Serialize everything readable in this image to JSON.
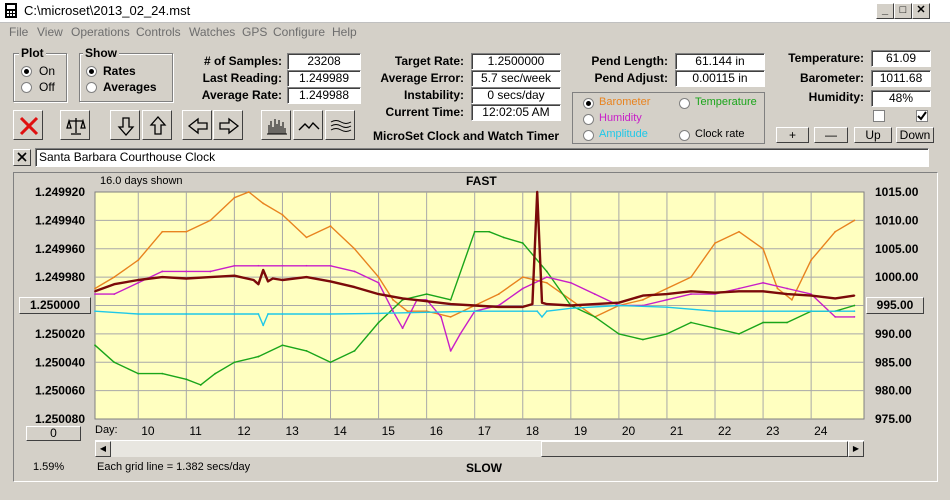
{
  "window": {
    "title": "C:\\microset\\2013_02_24.mst"
  },
  "menu": [
    "File",
    "View",
    "Operations",
    "Controls",
    "Watches",
    "GPS",
    "Configure",
    "Help"
  ],
  "plot_group": {
    "title": "Plot",
    "options": [
      "On",
      "Off"
    ],
    "selected": "On"
  },
  "show_group": {
    "title": "Show",
    "options": [
      "Rates",
      "Averages"
    ],
    "selected": "Rates"
  },
  "stats": {
    "samples_label": "# of Samples:",
    "samples": "23208",
    "last_reading_label": "Last Reading:",
    "last_reading": "1.249989",
    "average_rate_label": "Average Rate:",
    "average_rate": "1.249988",
    "target_rate_label": "Target Rate:",
    "target_rate": "1.2500000",
    "average_error_label": "Average Error:",
    "average_error": "5.7 sec/week",
    "instability_label": "Instability:",
    "instability": "0 secs/day",
    "current_time_label": "Current Time:",
    "current_time": "12:02:05 AM",
    "pend_length_label": "Pend Length:",
    "pend_length": "61.144 in",
    "pend_adjust_label": "Pend Adjust:",
    "pend_adjust": "0.00115 in",
    "temperature_label": "Temperature:",
    "temperature": "61.09",
    "barometer_label": "Barometer:",
    "barometer": "1011.68",
    "humidity_label": "Humidity:",
    "humidity": "48%"
  },
  "app_caption": "MicroSet Clock and Watch Timer",
  "overlay_options": [
    {
      "label": "Barometer",
      "color": "#e8831f",
      "selected": true
    },
    {
      "label": "Temperature",
      "color": "#1aa51a",
      "selected": false
    },
    {
      "label": "Humidity",
      "color": "#c81ec8",
      "selected": false
    },
    {
      "label": "Amplitude",
      "color": "#1ec8e8",
      "selected": false
    },
    {
      "label": "Clock rate",
      "color": "#000000",
      "selected": false
    }
  ],
  "scale_buttons": {
    "plus": "+",
    "minus": "—",
    "up": "Up",
    "down": "Down"
  },
  "toolbar_icons": [
    "close-icon",
    "balance-scale-icon",
    "arrow-down-icon",
    "arrow-up-icon",
    "arrow-left-icon",
    "arrow-right-icon",
    "bar-graph-icon",
    "line-graph-icon",
    "wave-graph-icon"
  ],
  "clock_name": "Santa Barbara Courthouse Clock",
  "plot": {
    "days_shown": "16.0 days shown",
    "top_label": "FAST",
    "bottom_label": "SLOW",
    "grid_note": "Each grid line = 1.382 secs/day",
    "left_value_button": "1.250000",
    "right_value_button": "995.00",
    "zero_button": "0",
    "percent": "1.59%",
    "day_label": "Day:"
  },
  "chart_data": {
    "type": "line",
    "x_label": "Day:",
    "x_ticks": [
      10,
      11,
      12,
      13,
      14,
      15,
      16,
      17,
      18,
      19,
      20,
      21,
      22,
      23,
      24
    ],
    "xlim": [
      9.1,
      25.1
    ],
    "left_axis": {
      "ticks": [
        "1.249920",
        "1.249940",
        "1.249960",
        "1.249980",
        "1.250000",
        "1.250020",
        "1.250040",
        "1.250060",
        "1.250080"
      ],
      "ylim": [
        1.24992,
        1.25008
      ],
      "inverted": true
    },
    "right_axis": {
      "ticks": [
        "1015.00",
        "1010.00",
        "1005.00",
        "1000.00",
        "995.00",
        "990.00",
        "985.00",
        "980.00",
        "975.00"
      ],
      "ylim": [
        975,
        1015
      ]
    },
    "grid": true,
    "series": [
      {
        "name": "Barometer",
        "color": "#e8831f",
        "axis": "right",
        "x": [
          9.1,
          9.5,
          10.0,
          10.5,
          11.0,
          11.5,
          12.0,
          12.3,
          12.6,
          13.0,
          13.5,
          14.0,
          14.5,
          15.0,
          15.3,
          15.6,
          16.0,
          16.5,
          17.0,
          17.5,
          18.0,
          18.5,
          19.0,
          19.5,
          20.0,
          20.5,
          21.0,
          21.5,
          22.0,
          22.5,
          23.0,
          23.3,
          23.6,
          24.0,
          24.5,
          24.9
        ],
        "y": [
          998,
          1000,
          1003,
          1008,
          1008,
          1010,
          1014,
          1015,
          1013,
          1011,
          1007,
          1009,
          1005,
          1000,
          996,
          994,
          994,
          993,
          995,
          997,
          1000,
          999,
          996,
          993,
          995,
          996,
          998,
          1000,
          1006,
          1008,
          1005,
          998,
          996,
          1003,
          1008,
          1010
        ]
      },
      {
        "name": "Temperature",
        "color": "#1aa51a",
        "axis": "right",
        "x": [
          9.1,
          9.5,
          10.0,
          10.5,
          11.0,
          11.3,
          11.6,
          12.0,
          12.5,
          13.0,
          13.5,
          14.0,
          14.5,
          15.0,
          15.5,
          16.0,
          16.5,
          17.0,
          17.3,
          17.6,
          18.0,
          18.5,
          19.0,
          19.5,
          20.0,
          20.5,
          21.0,
          21.5,
          22.0,
          22.5,
          23.0,
          23.5,
          24.0,
          24.5,
          24.9
        ],
        "y": [
          988,
          985,
          983,
          983,
          982,
          981,
          983,
          985,
          986,
          988,
          987,
          985,
          987,
          992,
          996,
          997,
          996,
          1008,
          1008,
          1007,
          1006,
          1001,
          995,
          993,
          990,
          989,
          990,
          992,
          991,
          990,
          992,
          992,
          994,
          994,
          995
        ]
      },
      {
        "name": "Humidity",
        "color": "#c81ec8",
        "axis": "right",
        "x": [
          9.1,
          9.5,
          10.0,
          10.5,
          11.0,
          11.5,
          12.0,
          12.5,
          13.0,
          13.5,
          14.0,
          14.5,
          15.0,
          15.3,
          15.5,
          15.8,
          16.0,
          16.3,
          16.5,
          16.7,
          17.0,
          17.5,
          18.0,
          18.5,
          19.0,
          19.5,
          20.0,
          20.5,
          21.0,
          21.5,
          22.0,
          22.5,
          23.0,
          23.5,
          24.0,
          24.5,
          24.9
        ],
        "y": [
          997,
          997,
          999,
          1001,
          1001,
          1001,
          1002,
          1002,
          1002,
          1002,
          1002,
          1001,
          999,
          994,
          991,
          996,
          996,
          993,
          987,
          990,
          994,
          995,
          998,
          1000,
          999,
          997,
          995,
          995,
          996,
          997,
          997,
          998,
          999,
          998,
          997,
          993,
          993
        ]
      },
      {
        "name": "Amplitude",
        "color": "#1ec8e8",
        "axis": "right",
        "x": [
          9.1,
          10.0,
          11.0,
          12.0,
          12.5,
          12.6,
          12.7,
          13.0,
          14.0,
          15.0,
          16.0,
          17.0,
          18.0,
          18.3,
          18.4,
          18.5,
          19.0,
          20.0,
          21.0,
          22.0,
          23.0,
          24.0,
          24.5,
          24.9
        ],
        "y": [
          994,
          993.5,
          993.5,
          993.5,
          993.5,
          991.5,
          993.5,
          993.5,
          993.5,
          993.6,
          993.8,
          994,
          994,
          994,
          993,
          994,
          994.5,
          995,
          994.7,
          994,
          994,
          994,
          994,
          994
        ]
      },
      {
        "name": "Clock rate",
        "color": "#7b0a0a",
        "axis": "left",
        "x": [
          9.1,
          9.5,
          10.0,
          10.5,
          11.0,
          11.5,
          12.0,
          12.4,
          12.5,
          12.6,
          12.7,
          12.8,
          13.0,
          13.5,
          14.0,
          14.5,
          15.0,
          15.5,
          16.0,
          16.5,
          17.0,
          17.5,
          18.0,
          18.2,
          18.3,
          18.4,
          18.5,
          19.0,
          19.5,
          20.0,
          20.5,
          21.0,
          21.5,
          22.0,
          22.5,
          23.0,
          23.5,
          24.0,
          24.5,
          24.9
        ],
        "y": [
          1.24999,
          1.249985,
          1.249982,
          1.24998,
          1.249981,
          1.24998,
          1.249979,
          1.249982,
          1.249985,
          1.249975,
          1.249983,
          1.249981,
          1.249982,
          1.24998,
          1.249983,
          1.249987,
          1.249992,
          1.249995,
          1.249997,
          1.249999,
          1.25,
          1.250001,
          1.250001,
          1.249999,
          1.24992,
          1.249998,
          1.249999,
          1.25,
          1.249999,
          1.249998,
          1.249993,
          1.249992,
          1.24999,
          1.249991,
          1.24999,
          1.24999,
          1.249992,
          1.249993,
          1.249995,
          1.249993
        ]
      }
    ]
  }
}
